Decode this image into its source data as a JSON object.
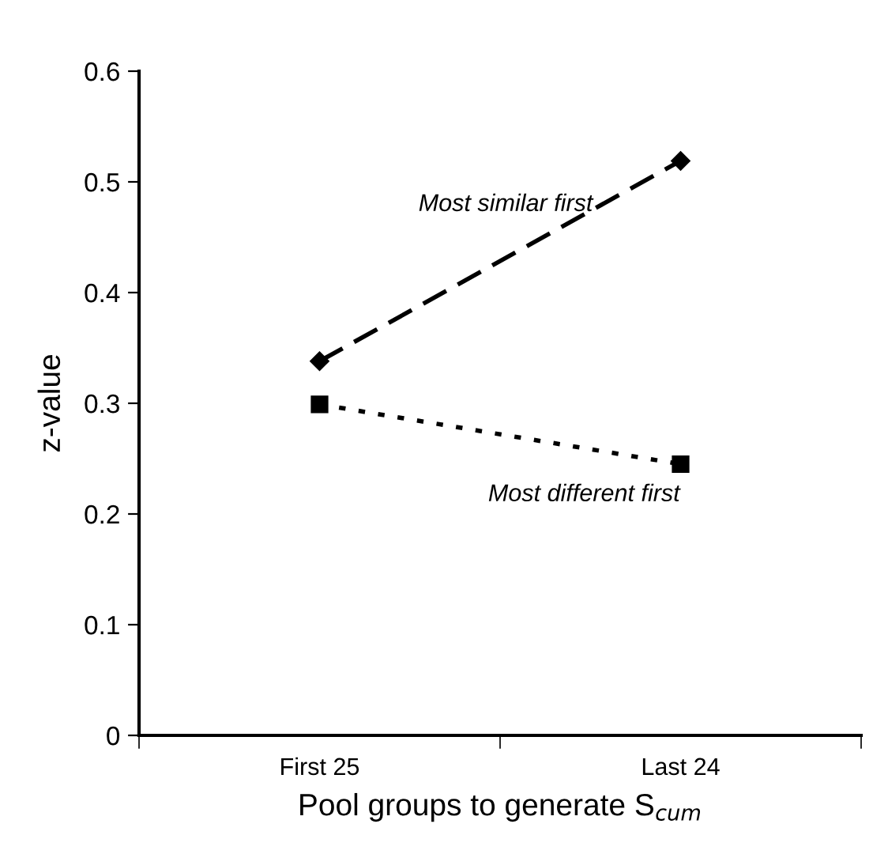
{
  "chart_data": {
    "type": "line",
    "xlabel": "Pool groups to generate S$_{cum}$",
    "ylabel": "z-value",
    "categories": [
      "First 25",
      "Last 24"
    ],
    "series": [
      {
        "name": "Most similar first",
        "color": "#000000",
        "values": [
          0.338,
          0.519
        ],
        "marker": "diamond",
        "line_style": "dashed"
      },
      {
        "name": "Most different first",
        "color": "#000000",
        "values": [
          0.299,
          0.245
        ],
        "marker": "square",
        "line_style": "dotted"
      }
    ],
    "ylim": [
      0,
      0.6
    ],
    "yticks": [
      0,
      0.1,
      0.2,
      0.3,
      0.4,
      0.5,
      0.6
    ],
    "grid": false,
    "legend": false
  }
}
